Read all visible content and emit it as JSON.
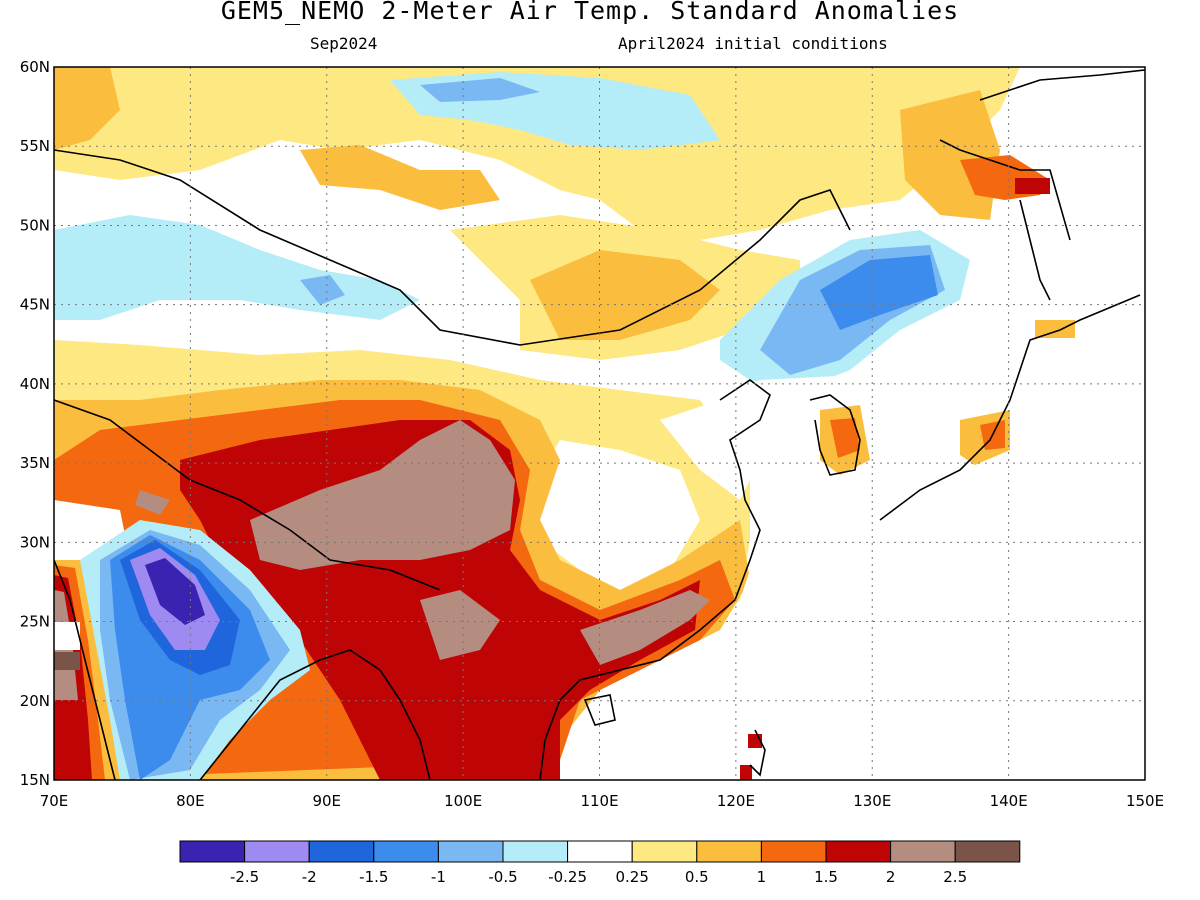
{
  "title": "GEM5_NEMO 2-Meter Air Temp. Standard Anomalies",
  "subtitle_left": "Sep2024",
  "subtitle_right": "April2024 initial conditions",
  "map": {
    "lon_range": [
      70,
      150
    ],
    "lat_range": [
      15,
      60
    ],
    "lon_ticks": [
      "70E",
      "80E",
      "90E",
      "100E",
      "110E",
      "120E",
      "130E",
      "140E",
      "150E"
    ],
    "lat_ticks": [
      "15N",
      "20N",
      "25N",
      "30N",
      "35N",
      "40N",
      "45N",
      "50N",
      "55N",
      "60N"
    ],
    "gridlines": "dotted",
    "projection": "lat-lon"
  },
  "colorbar": {
    "colors": [
      "#3a23b0",
      "#9e8af0",
      "#1f66dc",
      "#3c8cee",
      "#7ab8f4",
      "#b4ecf8",
      "#ffffff",
      "#fde882",
      "#fbbd3e",
      "#f46810",
      "#be0404",
      "#b48c80",
      "#7a5448"
    ],
    "labels": [
      "-2.5",
      "-2",
      "-1.5",
      "-1",
      "-0.5",
      "-0.25",
      "0.25",
      "0.5",
      "1",
      "1.5",
      "2",
      "2.5"
    ]
  },
  "anomaly_regions": [
    {
      "category": "-2.5 to -2",
      "where": "central India"
    },
    {
      "category": "-1.5 to -1",
      "where": "northeast China / Manchuria"
    },
    {
      "category": "2 to 2.5",
      "where": "Tibetan Plateau"
    },
    {
      "category": "1.5 to 2",
      "where": "Southeast Asia and southern China"
    }
  ]
}
